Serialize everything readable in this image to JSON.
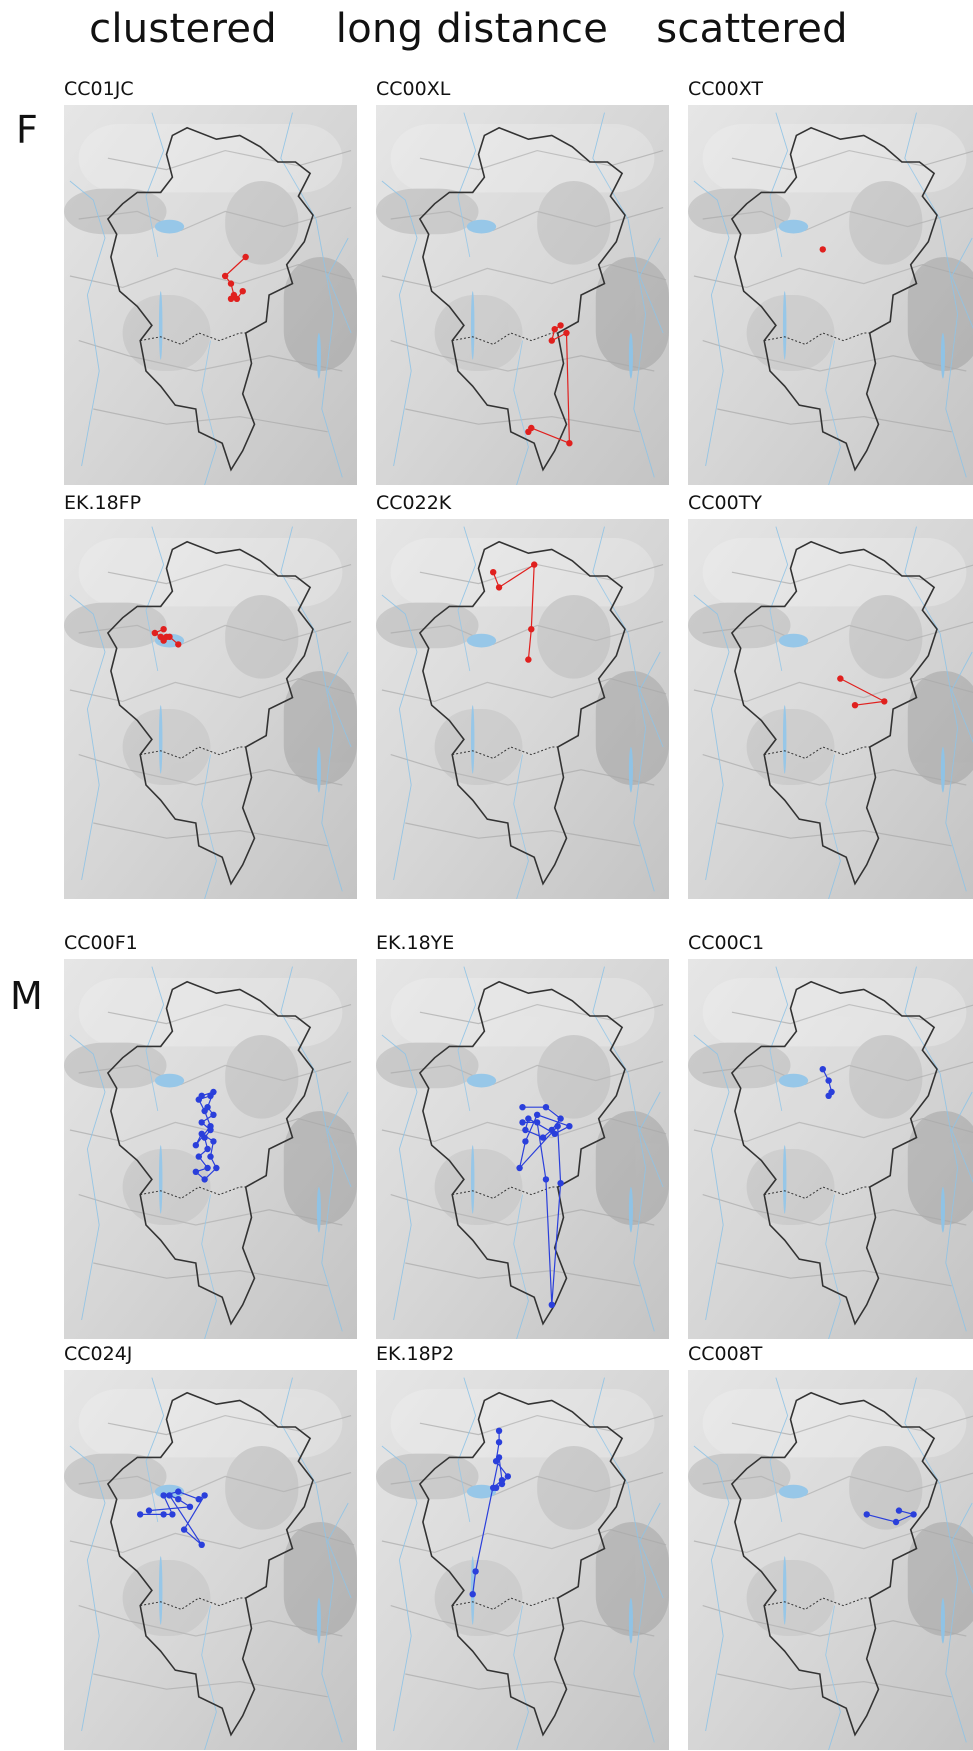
{
  "columns": [
    "clustered",
    "long distance",
    "scattered"
  ],
  "rows": [
    "F",
    "M"
  ],
  "colors": {
    "F": "#e0201e",
    "M": "#2a3fdb",
    "water": "#8fc3e6",
    "terrain_base": "#d6d6d6"
  },
  "panels": [
    {
      "id": "CC01JC",
      "row": "F",
      "col": "clustered",
      "track": [
        [
          0.62,
          0.4
        ],
        [
          0.55,
          0.45
        ],
        [
          0.57,
          0.47
        ],
        [
          0.58,
          0.5
        ],
        [
          0.57,
          0.51
        ],
        [
          0.59,
          0.51
        ],
        [
          0.61,
          0.49
        ]
      ]
    },
    {
      "id": "CC00XL",
      "row": "F",
      "col": "long distance",
      "track": [
        [
          0.63,
          0.58
        ],
        [
          0.61,
          0.59
        ],
        [
          0.6,
          0.62
        ],
        [
          0.65,
          0.6
        ],
        [
          0.66,
          0.89
        ],
        [
          0.53,
          0.85
        ],
        [
          0.52,
          0.86
        ]
      ]
    },
    {
      "id": "CC00XT",
      "row": "F",
      "col": "scattered",
      "track": [
        [
          0.46,
          0.38
        ]
      ]
    },
    {
      "id": "EK.18FP",
      "row": "F",
      "col": "clustered",
      "track": [
        [
          0.34,
          0.29
        ],
        [
          0.31,
          0.3
        ],
        [
          0.33,
          0.31
        ],
        [
          0.35,
          0.31
        ],
        [
          0.34,
          0.32
        ],
        [
          0.36,
          0.31
        ],
        [
          0.39,
          0.33
        ]
      ]
    },
    {
      "id": "CC022K",
      "row": "F",
      "col": "long distance",
      "track": [
        [
          0.4,
          0.14
        ],
        [
          0.42,
          0.18
        ],
        [
          0.54,
          0.12
        ],
        [
          0.53,
          0.29
        ],
        [
          0.52,
          0.37
        ]
      ]
    },
    {
      "id": "CC00TY",
      "row": "F",
      "col": "scattered",
      "track": [
        [
          0.52,
          0.42
        ],
        [
          0.67,
          0.48
        ],
        [
          0.57,
          0.49
        ]
      ]
    },
    {
      "id": "CC00F1",
      "row": "M",
      "col": "clustered",
      "track": [
        [
          0.47,
          0.36
        ],
        [
          0.51,
          0.35
        ],
        [
          0.49,
          0.39
        ],
        [
          0.51,
          0.41
        ],
        [
          0.47,
          0.43
        ],
        [
          0.5,
          0.45
        ],
        [
          0.48,
          0.47
        ],
        [
          0.49,
          0.5
        ],
        [
          0.46,
          0.52
        ],
        [
          0.49,
          0.55
        ],
        [
          0.45,
          0.56
        ],
        [
          0.48,
          0.58
        ],
        [
          0.52,
          0.55
        ],
        [
          0.5,
          0.52
        ],
        [
          0.51,
          0.48
        ],
        [
          0.47,
          0.46
        ],
        [
          0.45,
          0.49
        ],
        [
          0.5,
          0.44
        ],
        [
          0.48,
          0.4
        ],
        [
          0.46,
          0.37
        ],
        [
          0.5,
          0.36
        ]
      ]
    },
    {
      "id": "EK.18YE",
      "row": "M",
      "col": "long distance",
      "track": [
        [
          0.5,
          0.39
        ],
        [
          0.58,
          0.39
        ],
        [
          0.63,
          0.42
        ],
        [
          0.6,
          0.45
        ],
        [
          0.57,
          0.47
        ],
        [
          0.51,
          0.45
        ],
        [
          0.52,
          0.42
        ],
        [
          0.61,
          0.46
        ],
        [
          0.66,
          0.44
        ],
        [
          0.55,
          0.41
        ],
        [
          0.51,
          0.48
        ],
        [
          0.49,
          0.55
        ],
        [
          0.62,
          0.44
        ],
        [
          0.63,
          0.59
        ],
        [
          0.6,
          0.91
        ],
        [
          0.58,
          0.58
        ],
        [
          0.55,
          0.43
        ],
        [
          0.5,
          0.43
        ]
      ]
    },
    {
      "id": "CC00C1",
      "row": "M",
      "col": "scattered",
      "track": [
        [
          0.46,
          0.29
        ],
        [
          0.48,
          0.32
        ],
        [
          0.49,
          0.35
        ],
        [
          0.48,
          0.36
        ]
      ]
    },
    {
      "id": "CC024J",
      "row": "M",
      "col": "clustered",
      "track": [
        [
          0.26,
          0.38
        ],
        [
          0.34,
          0.38
        ],
        [
          0.37,
          0.38
        ],
        [
          0.34,
          0.33
        ],
        [
          0.39,
          0.32
        ],
        [
          0.46,
          0.34
        ],
        [
          0.48,
          0.33
        ],
        [
          0.41,
          0.42
        ],
        [
          0.47,
          0.46
        ],
        [
          0.36,
          0.33
        ],
        [
          0.39,
          0.34
        ],
        [
          0.43,
          0.36
        ],
        [
          0.29,
          0.37
        ]
      ]
    },
    {
      "id": "EK.18P2",
      "row": "M",
      "col": "long distance",
      "track": [
        [
          0.42,
          0.16
        ],
        [
          0.42,
          0.19
        ],
        [
          0.41,
          0.24
        ],
        [
          0.45,
          0.28
        ],
        [
          0.43,
          0.3
        ],
        [
          0.41,
          0.31
        ],
        [
          0.4,
          0.31
        ],
        [
          0.43,
          0.29
        ],
        [
          0.42,
          0.23
        ],
        [
          0.34,
          0.53
        ],
        [
          0.33,
          0.59
        ]
      ]
    },
    {
      "id": "CC008T",
      "row": "M",
      "col": "scattered",
      "track": [
        [
          0.61,
          0.38
        ],
        [
          0.71,
          0.4
        ],
        [
          0.77,
          0.38
        ],
        [
          0.72,
          0.37
        ]
      ]
    }
  ]
}
